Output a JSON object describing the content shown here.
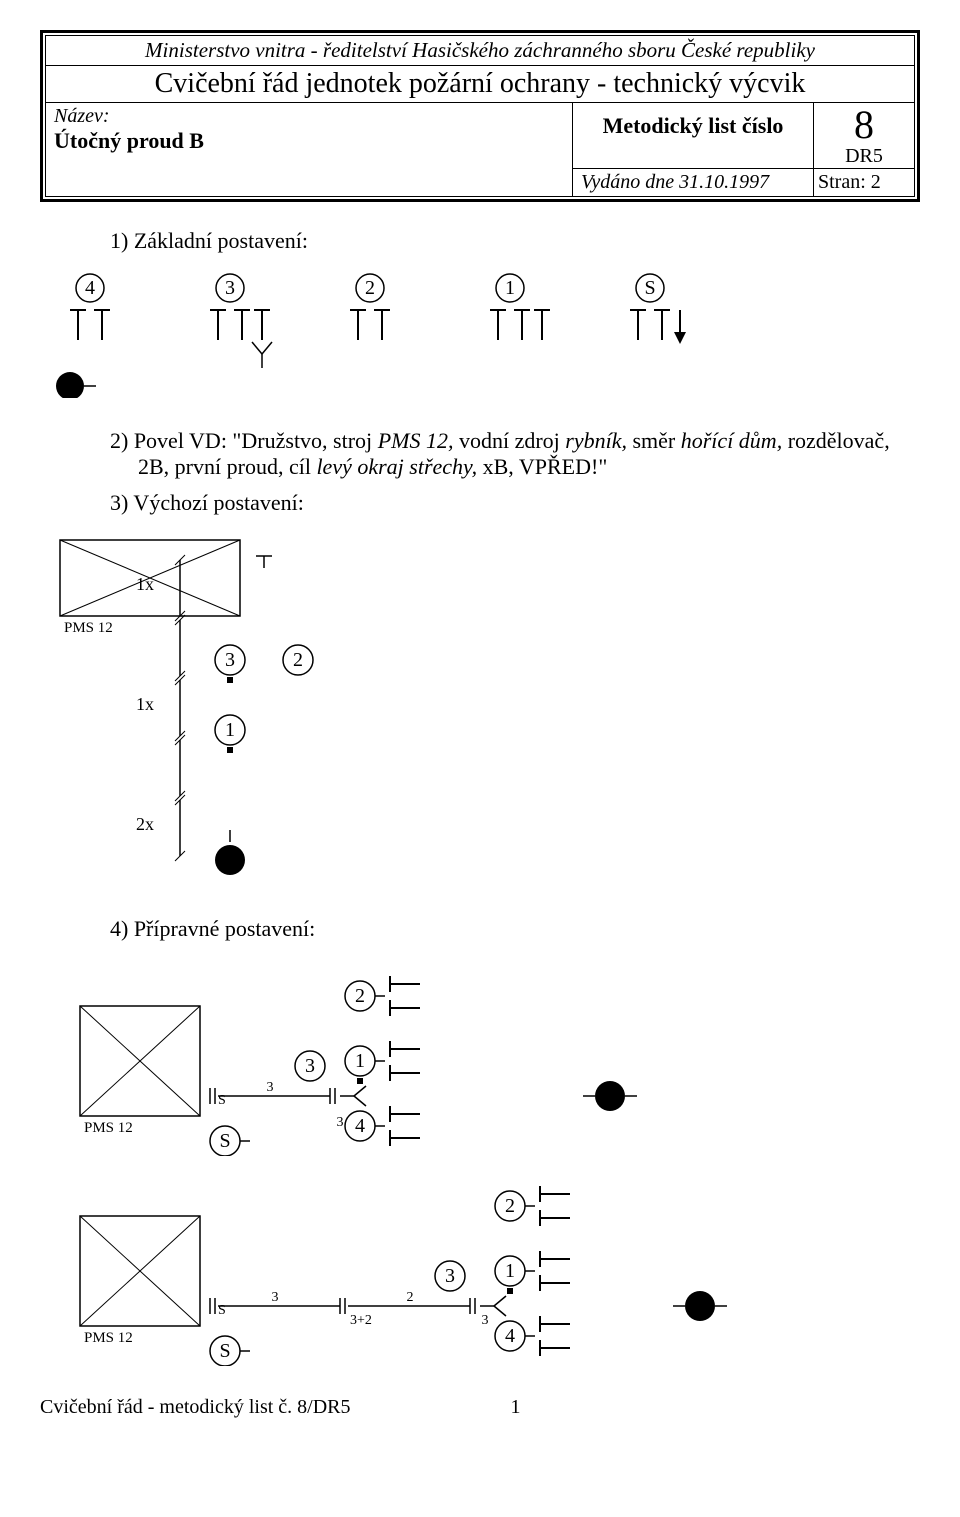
{
  "header": {
    "ministry": "Ministerstvo vnitra - ředitelství Hasičského záchranného sboru České republiky",
    "doc_title": "Cvičební řád jednotek požární ochrany - technický výcvik",
    "name_label": "Název:",
    "name_value": "Útočný proud B",
    "list_label": "Metodický list číslo",
    "issued": "Vydáno dne 31.10.1997",
    "number": "8",
    "code": "DR5",
    "pages": "Stran: 2"
  },
  "sections": {
    "s1": "1) Základní postavení:",
    "s2_prefix": "2) Povel VD: \"Družstvo, stroj ",
    "s2_i1": "PMS 12,",
    "s2_mid1": " vodní zdroj ",
    "s2_i2": "rybník,",
    "s2_mid2": " směr ",
    "s2_i3": "hořící dům,",
    "s2_mid3": " rozdělovač, 2B, první proud, cíl ",
    "s2_i4": "levý okraj střechy,",
    "s2_mid4": " xB, VPŘED!\"",
    "s3": "3) Výchozí postavení:",
    "s4": "4) Přípravné postavení:"
  },
  "diagram1": {
    "labels": [
      "4",
      "3",
      "2",
      "1",
      "S"
    ],
    "positions": [
      40,
      180,
      320,
      460,
      600
    ]
  },
  "diagram3": {
    "pms": "PMS 12",
    "x1": "1x",
    "x2": "2x",
    "n3": "3",
    "n2": "2",
    "n1": "1"
  },
  "diagram4a": {
    "pms": "PMS 12",
    "s_small": "S",
    "S": "S",
    "n2": "2",
    "n1": "1",
    "n3": "3",
    "n4": "4",
    "small3a": "3",
    "small3b": "3"
  },
  "diagram4b": {
    "pms": "PMS 12",
    "s_small": "S",
    "S": "S",
    "n2": "2",
    "n1": "1",
    "n3": "3",
    "n4": "4",
    "small3a": "3",
    "small2": "2",
    "small3plus2": "3+2",
    "small3b": "3"
  },
  "footer": {
    "text": "Cvičební řád - metodický list č. 8/DR5",
    "page": "1"
  },
  "style": {
    "stroke": "#000000",
    "fill_black": "#000000",
    "fill_white": "#ffffff",
    "font": "Times New Roman"
  }
}
